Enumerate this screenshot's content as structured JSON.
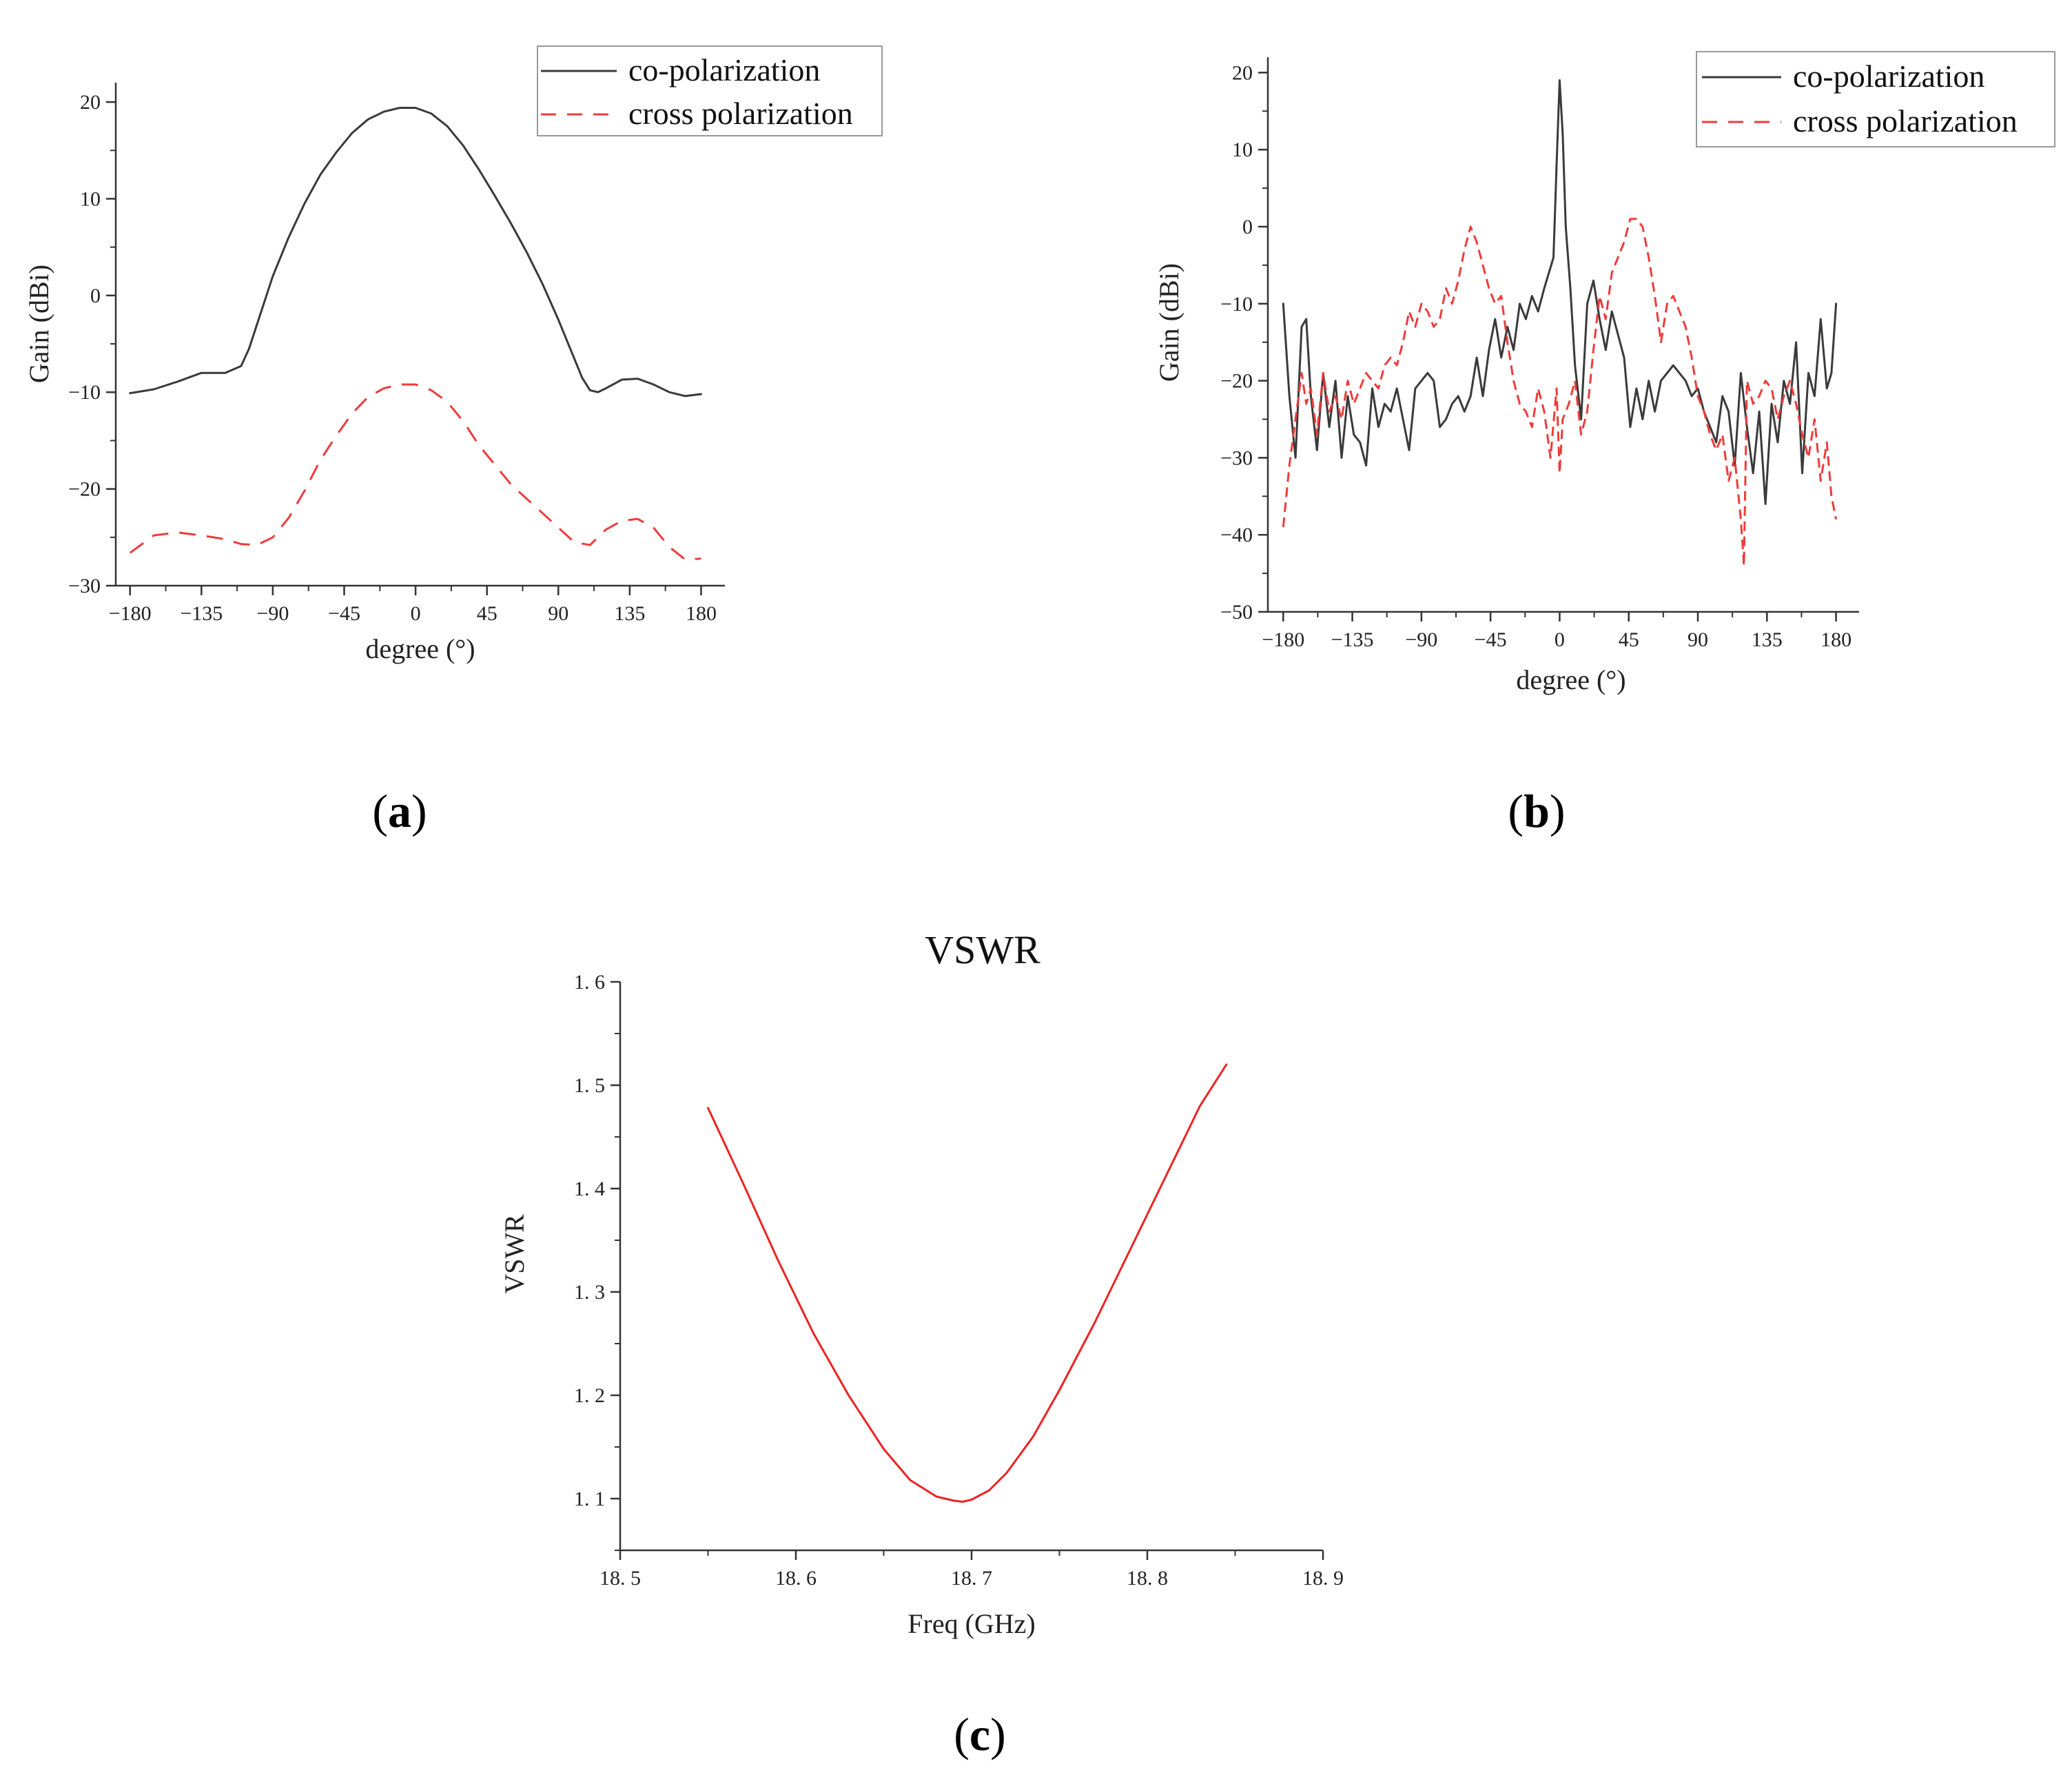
{
  "colors": {
    "co": "#3a3a3a",
    "cross": "#ee3b3b",
    "vswr": "#ee2222",
    "axis": "#333333"
  },
  "chart_data": [
    {
      "id": "a",
      "type": "line",
      "panel_label": "a",
      "xlabel": "degree (°)",
      "ylabel": "Gain (dBi)",
      "xlim": [
        -189,
        195
      ],
      "ylim": [
        -30,
        22
      ],
      "xticks": [
        -180,
        -135,
        -90,
        -45,
        0,
        45,
        90,
        135,
        180
      ],
      "xtick_labels": [
        "−180",
        "−135",
        "−90",
        "−45",
        "0",
        "45",
        "90",
        "135",
        "180"
      ],
      "yticks": [
        -30,
        -20,
        -10,
        0,
        10,
        20
      ],
      "ytick_labels": [
        "−30",
        "−20",
        "−10",
        "0",
        "10",
        "20"
      ],
      "legend_position": "top-right",
      "series": [
        {
          "name": "co-polarization",
          "style": "solid",
          "x": [
            -180,
            -165,
            -150,
            -135,
            -120,
            -110,
            -105,
            -100,
            -90,
            -80,
            -70,
            -60,
            -50,
            -40,
            -30,
            -20,
            -10,
            0,
            10,
            20,
            30,
            40,
            50,
            60,
            70,
            80,
            90,
            100,
            105,
            110,
            115,
            120,
            130,
            140,
            150,
            160,
            170,
            180
          ],
          "y": [
            -10.1,
            -9.7,
            -8.9,
            -8.0,
            -8.0,
            -7.3,
            -5.5,
            -3.0,
            2.0,
            6.0,
            9.5,
            12.5,
            14.8,
            16.8,
            18.2,
            19.0,
            19.4,
            19.4,
            18.8,
            17.5,
            15.5,
            13.0,
            10.3,
            7.5,
            4.5,
            1.2,
            -2.5,
            -6.5,
            -8.5,
            -9.8,
            -10.0,
            -9.6,
            -8.7,
            -8.6,
            -9.2,
            -10.0,
            -10.4,
            -10.2
          ]
        },
        {
          "name": "cross polarization",
          "style": "dashed",
          "x": [
            -180,
            -165,
            -150,
            -135,
            -120,
            -110,
            -100,
            -90,
            -80,
            -70,
            -60,
            -50,
            -40,
            -30,
            -20,
            -10,
            0,
            10,
            20,
            30,
            40,
            50,
            60,
            70,
            80,
            90,
            100,
            110,
            120,
            130,
            140,
            150,
            160,
            170,
            180
          ],
          "y": [
            -26.6,
            -24.8,
            -24.5,
            -24.8,
            -25.2,
            -25.7,
            -25.8,
            -25.0,
            -23.0,
            -20.2,
            -17.0,
            -14.5,
            -12.2,
            -10.5,
            -9.6,
            -9.2,
            -9.2,
            -9.8,
            -11.0,
            -13.0,
            -15.5,
            -17.5,
            -19.5,
            -21.0,
            -22.5,
            -24.0,
            -25.5,
            -25.8,
            -24.2,
            -23.3,
            -23.1,
            -24.0,
            -26.0,
            -27.3,
            -27.2
          ]
        }
      ]
    },
    {
      "id": "b",
      "type": "line",
      "panel_label": "b",
      "xlabel": "degree (°)",
      "ylabel": "Gain (dBi)",
      "xlim": [
        -190,
        195
      ],
      "ylim": [
        -50,
        22
      ],
      "xticks": [
        -180,
        -135,
        -90,
        -45,
        0,
        45,
        90,
        135,
        180
      ],
      "xtick_labels": [
        "−180",
        "−135",
        "−90",
        "−45",
        "0",
        "45",
        "90",
        "135",
        "180"
      ],
      "yticks": [
        -50,
        -40,
        -30,
        -20,
        -10,
        0,
        10,
        20
      ],
      "ytick_labels": [
        "−50",
        "−40",
        "−30",
        "−20",
        "−10",
        "0",
        "10",
        "20"
      ],
      "legend_position": "top-right",
      "series": [
        {
          "name": "co-polarization",
          "style": "solid",
          "x": [
            -180,
            -176,
            -172,
            -168,
            -165,
            -162,
            -158,
            -154,
            -150,
            -146,
            -142,
            -138,
            -134,
            -130,
            -126,
            -122,
            -118,
            -114,
            -110,
            -106,
            -102,
            -98,
            -94,
            -90,
            -86,
            -82,
            -78,
            -74,
            -70,
            -66,
            -62,
            -58,
            -54,
            -50,
            -46,
            -42,
            -38,
            -34,
            -30,
            -26,
            -22,
            -18,
            -14,
            -10,
            -7,
            -4,
            -2,
            0,
            2,
            4,
            7,
            10,
            14,
            18,
            22,
            26,
            30,
            34,
            38,
            42,
            46,
            50,
            54,
            58,
            62,
            66,
            70,
            74,
            78,
            82,
            86,
            90,
            94,
            98,
            102,
            106,
            110,
            114,
            118,
            122,
            126,
            130,
            134,
            138,
            142,
            146,
            150,
            154,
            158,
            162,
            166,
            170,
            174,
            177,
            180
          ],
          "y": [
            -10,
            -22,
            -30,
            -13,
            -12,
            -22,
            -29,
            -19,
            -26,
            -20,
            -30,
            -22,
            -27,
            -28,
            -31,
            -21,
            -26,
            -23,
            -24,
            -21,
            -25,
            -29,
            -21,
            -20,
            -19,
            -20,
            -26,
            -25,
            -23,
            -22,
            -24,
            -22,
            -17,
            -22,
            -16,
            -12,
            -17,
            -13,
            -16,
            -10,
            -12,
            -9,
            -11,
            -8,
            -6,
            -4,
            8,
            19,
            12,
            0,
            -8,
            -18,
            -25,
            -10,
            -7,
            -12,
            -16,
            -11,
            -14,
            -17,
            -26,
            -21,
            -25,
            -20,
            -24,
            -20,
            -19,
            -18,
            -19,
            -20,
            -22,
            -21,
            -24,
            -26,
            -28,
            -22,
            -24,
            -31,
            -19,
            -26,
            -32,
            -24,
            -36,
            -23,
            -28,
            -20,
            -23,
            -15,
            -32,
            -19,
            -22,
            -12,
            -21,
            -19,
            -10
          ],
          "color_key": "co"
        },
        {
          "name": "cross polarization",
          "style": "dashed",
          "x": [
            -180,
            -176,
            -172,
            -168,
            -165,
            -162,
            -158,
            -154,
            -150,
            -146,
            -142,
            -138,
            -134,
            -130,
            -126,
            -122,
            -118,
            -114,
            -110,
            -106,
            -102,
            -98,
            -94,
            -90,
            -86,
            -82,
            -78,
            -74,
            -70,
            -66,
            -62,
            -58,
            -54,
            -50,
            -46,
            -42,
            -38,
            -34,
            -30,
            -26,
            -22,
            -18,
            -14,
            -10,
            -6,
            -2,
            0,
            2,
            6,
            10,
            14,
            18,
            22,
            26,
            30,
            34,
            38,
            42,
            46,
            50,
            54,
            58,
            62,
            66,
            70,
            74,
            78,
            82,
            86,
            90,
            94,
            98,
            102,
            106,
            110,
            114,
            118,
            120,
            122,
            126,
            130,
            134,
            138,
            142,
            146,
            150,
            154,
            158,
            162,
            166,
            170,
            174,
            177,
            180
          ],
          "y": [
            -39,
            -31,
            -25,
            -19,
            -23,
            -21,
            -27,
            -19,
            -24,
            -22,
            -25,
            -20,
            -23,
            -21,
            -19,
            -20,
            -21,
            -18,
            -17,
            -18,
            -15,
            -11,
            -13,
            -10,
            -11,
            -13,
            -12,
            -8,
            -10,
            -7,
            -3,
            0,
            -2,
            -5,
            -8,
            -10,
            -9,
            -15,
            -20,
            -23,
            -24,
            -26,
            -21,
            -24,
            -30,
            -21,
            -32,
            -25,
            -23,
            -20,
            -27,
            -24,
            -16,
            -9,
            -12,
            -6,
            -4,
            -2,
            1,
            1,
            0,
            -4,
            -9,
            -15,
            -10,
            -9,
            -11,
            -13,
            -17,
            -22,
            -24,
            -27,
            -29,
            -27,
            -33,
            -30,
            -38,
            -44,
            -20,
            -23,
            -22,
            -20,
            -21,
            -25,
            -22,
            -20,
            -23,
            -27,
            -30,
            -25,
            -33,
            -28,
            -35,
            -38
          ],
          "color_key": "cross"
        }
      ]
    },
    {
      "id": "c",
      "type": "line",
      "panel_label": "c",
      "title": "VSWR",
      "xlabel": "Freq (GHz)",
      "ylabel": "VSWR",
      "xlim": [
        18.5,
        18.9
      ],
      "ylim": [
        1.05,
        1.6
      ],
      "xticks": [
        18.5,
        18.6,
        18.7,
        18.8,
        18.9
      ],
      "xtick_labels": [
        "18. 5",
        "18. 6",
        "18. 7",
        "18. 8",
        "18. 9"
      ],
      "yticks": [
        1.1,
        1.2,
        1.3,
        1.4,
        1.5,
        1.6
      ],
      "ytick_labels": [
        "1. 1",
        "1. 2",
        "1. 3",
        "1. 4",
        "1. 5",
        "1. 6"
      ],
      "series": [
        {
          "name": "VSWR",
          "style": "solid",
          "x": [
            18.55,
            18.57,
            18.59,
            18.61,
            18.63,
            18.65,
            18.665,
            18.68,
            18.69,
            18.695,
            18.7,
            18.71,
            18.72,
            18.735,
            18.75,
            18.77,
            18.79,
            18.81,
            18.83,
            18.845
          ],
          "y": [
            1.478,
            1.405,
            1.33,
            1.26,
            1.2,
            1.148,
            1.118,
            1.102,
            1.098,
            1.097,
            1.099,
            1.108,
            1.125,
            1.16,
            1.205,
            1.27,
            1.34,
            1.41,
            1.48,
            1.52
          ],
          "color_key": "vswr"
        }
      ]
    }
  ]
}
